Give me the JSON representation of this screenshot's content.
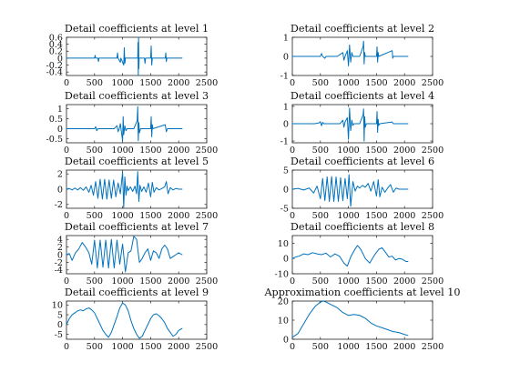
{
  "figure": {
    "background": "#ffffff",
    "series_color": "#0072bd"
  },
  "chart_data": [
    {
      "type": "line",
      "title": "Detail coefficients at level 1",
      "xlim": [
        0,
        2500
      ],
      "ylim": [
        -0.5,
        0.6
      ],
      "xticks": [
        0,
        500,
        1000,
        1500,
        2000,
        2500
      ],
      "xtick_labels": [
        "0",
        "500",
        "1000",
        "1500",
        "2000",
        "2500"
      ],
      "yticks": [
        -0.4,
        -0.2,
        0,
        0.2,
        0.4,
        0.6
      ],
      "ytick_labels": [
        "-0.4",
        "-0.2",
        "0",
        "0.2",
        "0.4",
        "0.6"
      ],
      "x": [
        0,
        300,
        500,
        510,
        520,
        560,
        570,
        580,
        800,
        900,
        910,
        920,
        960,
        970,
        1020,
        1030,
        1040,
        1050,
        1060,
        1200,
        1270,
        1275,
        1280,
        1285,
        1290,
        1295,
        1390,
        1400,
        1410,
        1500,
        1510,
        1520,
        1530,
        1540,
        1760,
        1770,
        1780,
        1790,
        1800,
        2000,
        2060
      ],
      "y": [
        0,
        0,
        0,
        0.08,
        0,
        0,
        -0.1,
        0,
        0,
        0,
        0.15,
        0,
        -0.12,
        0,
        -0.2,
        0.3,
        -0.15,
        0,
        0,
        0,
        0,
        0.45,
        -0.5,
        0.6,
        -0.3,
        0,
        0,
        -0.15,
        0,
        0,
        0.35,
        -0.2,
        0,
        0,
        0,
        0.15,
        -0.1,
        0,
        0,
        0,
        0
      ]
    },
    {
      "type": "line",
      "title": "Detail coefficients at level 2",
      "xlim": [
        0,
        2500
      ],
      "ylim": [
        -1,
        1
      ],
      "xticks": [
        0,
        500,
        1000,
        1500,
        2000,
        2500
      ],
      "xtick_labels": [
        "0",
        "500",
        "1000",
        "1500",
        "2000",
        "2500"
      ],
      "yticks": [
        -1,
        0,
        1
      ],
      "ytick_labels": [
        "-1",
        "0",
        "1"
      ],
      "x": [
        0,
        400,
        500,
        520,
        540,
        580,
        600,
        800,
        900,
        920,
        940,
        980,
        1000,
        1020,
        1040,
        1060,
        1080,
        1100,
        1200,
        1260,
        1270,
        1280,
        1290,
        1300,
        1500,
        1510,
        1520,
        1530,
        1540,
        1780,
        1790,
        1800,
        2000,
        2060
      ],
      "y": [
        0,
        0,
        0,
        0.15,
        0,
        -0.1,
        0,
        0,
        0.2,
        -0.2,
        0,
        0.3,
        -0.5,
        0.6,
        -0.3,
        0.2,
        0,
        0,
        0,
        0.5,
        0.8,
        -0.4,
        0.2,
        0,
        0,
        0.5,
        -0.3,
        0.2,
        0,
        0.3,
        -0.1,
        0,
        0,
        0
      ]
    },
    {
      "type": "line",
      "title": "Detail coefficients at level 3",
      "xlim": [
        0,
        2500
      ],
      "ylim": [
        -0.7,
        1.2
      ],
      "xticks": [
        0,
        500,
        1000,
        1500,
        2000,
        2500
      ],
      "xtick_labels": [
        "0",
        "500",
        "1000",
        "1500",
        "2000",
        "2500"
      ],
      "yticks": [
        -0.5,
        0,
        0.5,
        1
      ],
      "ytick_labels": [
        "-0.5",
        "0",
        "0.5",
        "1"
      ],
      "x": [
        0,
        400,
        500,
        520,
        540,
        560,
        600,
        850,
        900,
        920,
        940,
        960,
        1000,
        1010,
        1020,
        1040,
        1060,
        1080,
        1200,
        1260,
        1270,
        1280,
        1290,
        1300,
        1320,
        1500,
        1510,
        1520,
        1530,
        1540,
        1760,
        1780,
        1800,
        2000,
        2060
      ],
      "y": [
        0,
        0,
        0,
        0.1,
        -0.1,
        0,
        0,
        0,
        0.15,
        -0.15,
        0,
        0.25,
        -0.6,
        0.6,
        -0.3,
        0.15,
        -0.1,
        0,
        0,
        0.4,
        1.1,
        -0.6,
        0.3,
        -0.2,
        0,
        0,
        0.6,
        -0.4,
        0.2,
        0,
        0.2,
        -0.15,
        0,
        0,
        0
      ]
    },
    {
      "type": "line",
      "title": "Detail coefficients at level 4",
      "xlim": [
        0,
        2500
      ],
      "ylim": [
        -1.1,
        1.1
      ],
      "xticks": [
        0,
        500,
        1000,
        1500,
        2000,
        2500
      ],
      "xtick_labels": [
        "0",
        "500",
        "1000",
        "1500",
        "2000",
        "2500"
      ],
      "yticks": [
        -1,
        0,
        1
      ],
      "ytick_labels": [
        "-1",
        "0",
        "1"
      ],
      "x": [
        0,
        400,
        480,
        500,
        520,
        540,
        560,
        600,
        850,
        900,
        920,
        940,
        980,
        1000,
        1020,
        1040,
        1060,
        1080,
        1100,
        1200,
        1260,
        1270,
        1280,
        1290,
        1300,
        1320,
        1500,
        1510,
        1520,
        1530,
        1540,
        1560,
        1780,
        1800,
        2000,
        2060
      ],
      "y": [
        0,
        0,
        0.05,
        0.12,
        -0.12,
        0.08,
        0,
        0,
        0,
        0.2,
        -0.2,
        0.1,
        0.35,
        -0.9,
        0.9,
        -0.4,
        0.2,
        -0.1,
        0,
        0,
        0.5,
        0.85,
        -1,
        0.4,
        -0.2,
        0,
        0,
        0.7,
        -0.5,
        0.25,
        -0.1,
        0,
        0.1,
        0,
        0,
        0
      ]
    },
    {
      "type": "line",
      "title": "Detail coefficients at level 5",
      "xlim": [
        0,
        2500
      ],
      "ylim": [
        -2.5,
        2.5
      ],
      "xticks": [
        0,
        500,
        1000,
        1500,
        2000,
        2500
      ],
      "xtick_labels": [
        "0",
        "500",
        "1000",
        "1500",
        "2000",
        "2500"
      ],
      "yticks": [
        -2,
        0,
        2
      ],
      "ytick_labels": [
        "-2",
        "0",
        "2"
      ],
      "x": [
        0,
        50,
        100,
        150,
        200,
        250,
        300,
        350,
        400,
        440,
        480,
        520,
        560,
        600,
        640,
        680,
        720,
        760,
        800,
        840,
        880,
        920,
        960,
        1000,
        1020,
        1040,
        1060,
        1080,
        1100,
        1140,
        1180,
        1220,
        1250,
        1270,
        1290,
        1310,
        1340,
        1380,
        1420,
        1460,
        1500,
        1530,
        1560,
        1600,
        1650,
        1700,
        1750,
        1780,
        1810,
        1850,
        1900,
        1950,
        2000,
        2060
      ],
      "y": [
        0,
        0.1,
        -0.1,
        0.15,
        -0.1,
        0.2,
        -0.15,
        0.3,
        -0.4,
        0.5,
        -0.8,
        1.0,
        -1.2,
        1.3,
        -1.3,
        1.3,
        -1.3,
        1.2,
        -1.2,
        1.2,
        -1.0,
        0.8,
        -0.6,
        2.2,
        -2.4,
        1.6,
        -0.8,
        0.4,
        -0.2,
        0.3,
        -0.3,
        0.4,
        -0.6,
        2.3,
        -1.6,
        0.5,
        -0.3,
        0.3,
        -0.4,
        0.8,
        -1.0,
        0.9,
        -0.4,
        0.2,
        -0.1,
        0.1,
        0.3,
        1.0,
        -0.6,
        0.2,
        -0.1,
        0.1,
        0,
        0
      ]
    },
    {
      "type": "line",
      "title": "Detail coefficients at level 6",
      "xlim": [
        0,
        2500
      ],
      "ylim": [
        -5,
        5
      ],
      "xticks": [
        0,
        500,
        1000,
        1500,
        2000,
        2500
      ],
      "xtick_labels": [
        "0",
        "500",
        "1000",
        "1500",
        "2000",
        "2500"
      ],
      "yticks": [
        -5,
        0,
        5
      ],
      "ytick_labels": [
        "-5",
        "0",
        "5"
      ],
      "x": [
        0,
        100,
        200,
        300,
        380,
        440,
        500,
        540,
        580,
        620,
        660,
        700,
        740,
        780,
        820,
        860,
        900,
        940,
        980,
        1010,
        1040,
        1080,
        1120,
        1160,
        1200,
        1250,
        1300,
        1350,
        1400,
        1450,
        1500,
        1530,
        1560,
        1600,
        1650,
        1700,
        1750,
        1800,
        1850,
        1900,
        2000,
        2060
      ],
      "y": [
        0,
        0.2,
        -0.2,
        0.3,
        -1.0,
        0.8,
        -2.5,
        2.8,
        -3.0,
        3.2,
        -3.2,
        3.3,
        -3.2,
        3.2,
        -3.2,
        3.0,
        -3.0,
        2.8,
        -2.5,
        3.8,
        -4.5,
        2.0,
        -0.5,
        0.8,
        0.3,
        1.0,
        0.5,
        1.5,
        -0.5,
        2.0,
        -1.8,
        2.5,
        -2.0,
        0.5,
        -0.8,
        0.3,
        1.2,
        -0.8,
        0.3,
        0,
        0,
        0
      ]
    },
    {
      "type": "line",
      "title": "Detail coefficients at level 7",
      "xlim": [
        0,
        2500
      ],
      "ylim": [
        -5,
        5
      ],
      "xticks": [
        0,
        500,
        1000,
        1500,
        2000,
        2500
      ],
      "xtick_labels": [
        "0",
        "500",
        "1000",
        "1500",
        "2000",
        "2500"
      ],
      "yticks": [
        -4,
        -2,
        0,
        2,
        4
      ],
      "ytick_labels": [
        "-4",
        "-2",
        "0",
        "2",
        "4"
      ],
      "x": [
        0,
        50,
        100,
        160,
        220,
        280,
        340,
        400,
        450,
        500,
        550,
        600,
        650,
        700,
        750,
        800,
        850,
        900,
        950,
        1000,
        1050,
        1100,
        1150,
        1200,
        1250,
        1300,
        1350,
        1400,
        1450,
        1500,
        1550,
        1600,
        1650,
        1700,
        1750,
        1800,
        1850,
        1900,
        1950,
        2000,
        2060
      ],
      "y": [
        0,
        0.3,
        -1.5,
        0.5,
        1.5,
        3.2,
        2.0,
        0.5,
        -2.5,
        3.8,
        -3.5,
        3.8,
        -3.3,
        3.8,
        -3.5,
        4.0,
        -3.5,
        3.8,
        -2.5,
        2.8,
        -4.5,
        0.5,
        1.0,
        4.8,
        4.0,
        -2.0,
        -1.0,
        0.5,
        1.5,
        -1.5,
        1.0,
        0.5,
        -1.0,
        1.5,
        2.5,
        1.5,
        -1.0,
        -0.5,
        0,
        0.5,
        0
      ]
    },
    {
      "type": "line",
      "title": "Detail coefficients at level 8",
      "xlim": [
        0,
        2500
      ],
      "ylim": [
        -10,
        15
      ],
      "xticks": [
        0,
        500,
        1000,
        1500,
        2000,
        2500
      ],
      "xtick_labels": [
        "0",
        "500",
        "1000",
        "1500",
        "2000",
        "2500"
      ],
      "yticks": [
        -10,
        0,
        10
      ],
      "ytick_labels": [
        "-10",
        "0",
        "10"
      ],
      "x": [
        0,
        60,
        120,
        200,
        280,
        360,
        440,
        520,
        600,
        680,
        760,
        840,
        920,
        980,
        1040,
        1100,
        1160,
        1220,
        1300,
        1380,
        1460,
        1540,
        1600,
        1660,
        1720,
        1780,
        1840,
        1900,
        1960,
        2030,
        2060
      ],
      "y": [
        0,
        1,
        1.5,
        3,
        2.5,
        3.8,
        3,
        2.5,
        3.5,
        1,
        3,
        1.5,
        -3,
        -5,
        1,
        5,
        8.5,
        6,
        0,
        -3,
        2,
        6,
        7,
        4,
        1,
        1.5,
        -1,
        0,
        -0.5,
        -2,
        -2
      ]
    },
    {
      "type": "line",
      "title": "Detail coefficients at level 9",
      "xlim": [
        0,
        2500
      ],
      "ylim": [
        -7.5,
        12
      ],
      "xticks": [
        0,
        500,
        1000,
        1500,
        2000,
        2500
      ],
      "xtick_labels": [
        "0",
        "500",
        "1000",
        "1500",
        "2000",
        "2500"
      ],
      "yticks": [
        -5,
        0,
        5,
        10
      ],
      "ytick_labels": [
        "-5",
        "0",
        "5",
        "10"
      ],
      "x": [
        0,
        50,
        100,
        150,
        200,
        250,
        300,
        350,
        400,
        450,
        500,
        550,
        600,
        650,
        700,
        750,
        800,
        850,
        900,
        950,
        1000,
        1050,
        1100,
        1150,
        1200,
        1250,
        1300,
        1350,
        1400,
        1450,
        1500,
        1550,
        1600,
        1650,
        1700,
        1750,
        1800,
        1850,
        1900,
        1950,
        2000,
        2060
      ],
      "y": [
        0,
        3,
        5,
        6,
        7,
        7.5,
        7,
        8,
        8.5,
        7.5,
        6,
        3,
        0,
        -3,
        -5,
        -6.5,
        -4,
        0,
        4,
        8.5,
        11,
        10,
        7,
        2,
        -2,
        -5,
        -7,
        -6,
        -3,
        0,
        3,
        5,
        5.5,
        4.5,
        3,
        1,
        -2,
        -4,
        -6,
        -5,
        -3,
        -2
      ]
    },
    {
      "type": "line",
      "title": "Approximation coefficients at level 10",
      "xlim": [
        0,
        2500
      ],
      "ylim": [
        0,
        20
      ],
      "xticks": [
        0,
        500,
        1000,
        1500,
        2000,
        2500
      ],
      "xtick_labels": [
        "0",
        "500",
        "1000",
        "1500",
        "2000",
        "2500"
      ],
      "yticks": [
        0,
        10,
        20
      ],
      "ytick_labels": [
        "0",
        "10",
        "20"
      ],
      "x": [
        0,
        100,
        200,
        300,
        400,
        500,
        550,
        600,
        700,
        800,
        900,
        1000,
        1100,
        1200,
        1300,
        1400,
        1500,
        1600,
        1700,
        1800,
        1900,
        2000,
        2060
      ],
      "y": [
        1,
        3,
        8,
        13,
        17,
        19.5,
        20,
        19.5,
        18,
        16.5,
        14,
        12.5,
        13,
        12.5,
        11,
        8.5,
        7,
        6,
        5,
        4,
        3.5,
        2.5,
        2
      ]
    }
  ]
}
